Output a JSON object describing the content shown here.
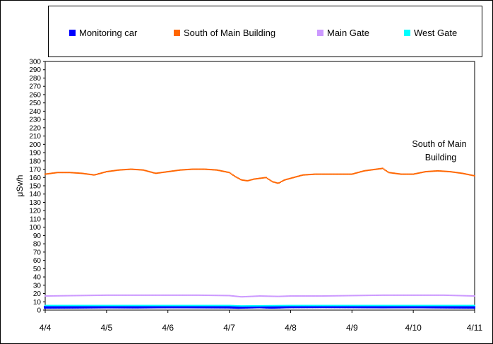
{
  "chart_data": {
    "type": "scatter",
    "ylabel": "μSv/h",
    "xlabel": "",
    "ylim": [
      0,
      300
    ],
    "y_ticks": [
      0,
      10,
      20,
      30,
      40,
      50,
      60,
      70,
      80,
      90,
      100,
      110,
      120,
      130,
      140,
      150,
      160,
      170,
      180,
      190,
      200,
      210,
      220,
      230,
      240,
      250,
      260,
      270,
      280,
      290,
      300
    ],
    "x_ticks": [
      "4/4",
      "4/5",
      "4/6",
      "4/7",
      "4/8",
      "4/9",
      "4/10",
      "4/11"
    ],
    "legend_position": "top",
    "annotation": [
      "South of Main",
      "Building"
    ],
    "series": [
      {
        "name": "Monitoring car",
        "color": "#0000ff",
        "x": [
          0.0,
          0.5,
          1.0,
          1.5,
          2.0,
          2.5,
          3.0,
          3.15,
          3.3,
          3.5,
          3.7,
          4.0,
          4.5,
          5.0,
          5.5,
          6.0,
          6.5,
          7.0
        ],
        "y": [
          3.5,
          3.6,
          3.8,
          3.7,
          3.9,
          3.8,
          3.7,
          3.3,
          3.6,
          3.9,
          3.4,
          4.0,
          4.1,
          4.0,
          3.8,
          3.9,
          3.7,
          3.5
        ]
      },
      {
        "name": "South of Main Building",
        "color": "#ff6600",
        "x": [
          0.0,
          0.2,
          0.4,
          0.6,
          0.8,
          1.0,
          1.2,
          1.4,
          1.6,
          1.8,
          2.0,
          2.2,
          2.4,
          2.6,
          2.8,
          3.0,
          3.1,
          3.2,
          3.3,
          3.4,
          3.5,
          3.6,
          3.7,
          3.8,
          3.9,
          4.0,
          4.2,
          4.4,
          4.6,
          4.8,
          5.0,
          5.2,
          5.3,
          5.4,
          5.5,
          5.6,
          5.8,
          6.0,
          6.2,
          6.4,
          6.6,
          6.8,
          7.0
        ],
        "y": [
          164,
          166,
          166,
          165,
          163,
          167,
          169,
          170,
          169,
          165,
          167,
          169,
          170,
          170,
          169,
          166,
          161,
          157,
          156,
          158,
          159,
          160,
          155,
          153,
          157,
          159,
          163,
          164,
          164,
          164,
          164,
          168,
          169,
          170,
          171,
          166,
          164,
          164,
          167,
          168,
          167,
          165,
          162
        ]
      },
      {
        "name": "Main Gate",
        "color": "#cc99ff",
        "x": [
          0.0,
          0.5,
          1.0,
          1.5,
          2.0,
          2.5,
          3.0,
          3.2,
          3.5,
          3.8,
          4.0,
          4.5,
          5.0,
          5.5,
          6.0,
          6.5,
          7.0
        ],
        "y": [
          17,
          17.5,
          18,
          18,
          18,
          18,
          17.5,
          16,
          17,
          16.5,
          17,
          17,
          17.5,
          18,
          18,
          18,
          17
        ]
      },
      {
        "name": "West Gate",
        "color": "#00ffff",
        "x": [
          0.0,
          1.0,
          2.0,
          3.0,
          3.2,
          3.5,
          4.0,
          5.0,
          6.0,
          7.0
        ],
        "y": [
          5.5,
          5.5,
          5.5,
          5.5,
          5.0,
          5.2,
          5.5,
          5.5,
          5.5,
          5.5
        ]
      }
    ]
  }
}
